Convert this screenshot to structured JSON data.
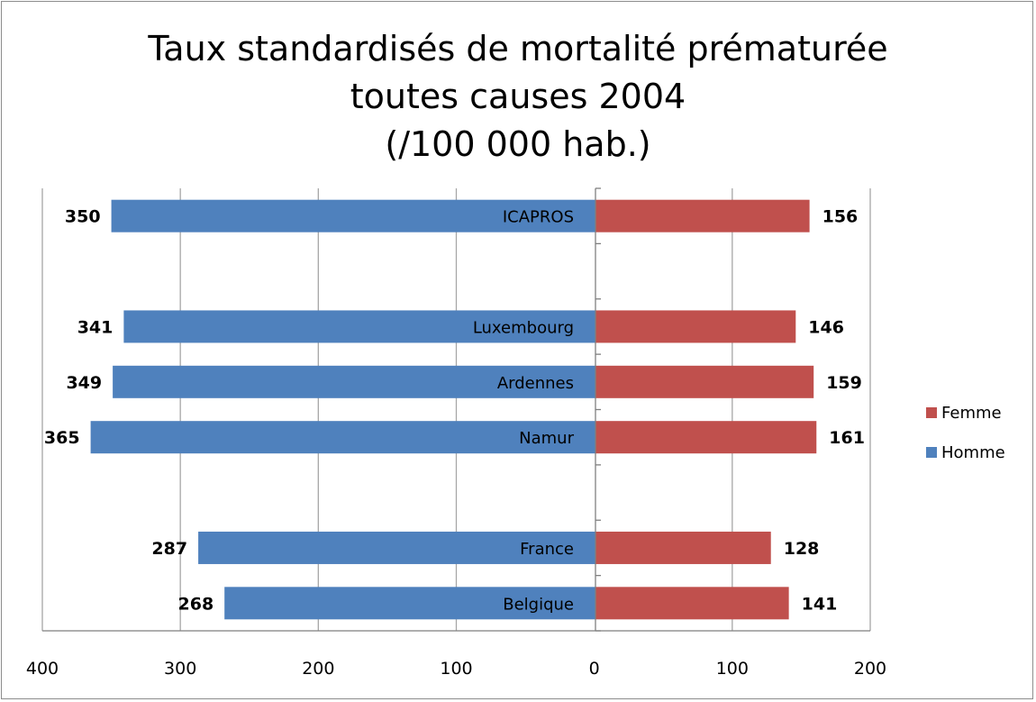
{
  "title_lines": [
    "Taux standardisés de mortalité prématurée",
    "toutes causes 2004",
    "(/100 000 hab.)"
  ],
  "colors": {
    "femme": "#c0504d",
    "homme": "#4f81bd",
    "grid": "#a6a6a6",
    "axis": "#7f7f7f"
  },
  "chart_data": {
    "type": "bar",
    "orientation": "horizontal",
    "layout": "population-pyramid",
    "categories": [
      "ICAPROS",
      "",
      "Luxembourg",
      "Ardennes",
      "Namur",
      "",
      "France",
      "Belgique"
    ],
    "series": [
      {
        "name": "Homme",
        "values": [
          350,
          null,
          341,
          349,
          365,
          null,
          287,
          268
        ],
        "direction": "left"
      },
      {
        "name": "Femme",
        "values": [
          156,
          null,
          146,
          159,
          161,
          null,
          128,
          141
        ],
        "direction": "right"
      }
    ],
    "data_labels": {
      "Homme": [
        "350",
        "",
        "341",
        "349",
        "365",
        "",
        "287",
        "268"
      ],
      "Femme": [
        "156",
        "",
        "146",
        "159",
        "161",
        "",
        "128",
        "141"
      ]
    },
    "x_tick_labels": [
      "400",
      "300",
      "200",
      "100",
      "0",
      "100",
      "200"
    ],
    "x_ticks": [
      -400,
      -300,
      -200,
      -100,
      0,
      100,
      200
    ],
    "xlim": [
      -400,
      200
    ],
    "grid": true,
    "legend": "right"
  }
}
